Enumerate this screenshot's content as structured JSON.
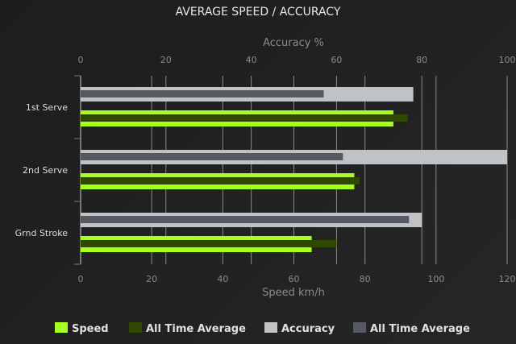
{
  "chart_data": {
    "type": "bar",
    "orientation": "horizontal",
    "title": "AVERAGE SPEED / ACCURACY",
    "categories": [
      "1st Serve",
      "2nd Serve",
      "Grnd Stroke"
    ],
    "axes": {
      "top": {
        "label": "Accuracy %",
        "range": [
          0,
          100
        ],
        "ticks": [
          "0",
          "20",
          "40",
          "60",
          "80",
          "100"
        ]
      },
      "bottom": {
        "label": "Speed km/h",
        "range": [
          0,
          120
        ],
        "ticks": [
          "0",
          "20",
          "40",
          "60",
          "80",
          "100",
          "120"
        ]
      }
    },
    "series": [
      {
        "name": "Speed",
        "axis": "bottom",
        "color": "#a6ff1e",
        "values": [
          88,
          77,
          65
        ]
      },
      {
        "name": "All Time Average",
        "axis": "bottom",
        "color": "#2f4a00",
        "values": [
          92,
          78.5,
          72
        ]
      },
      {
        "name": "Accuracy",
        "axis": "top",
        "color": "#bfc3c5",
        "values": [
          78,
          100,
          80
        ]
      },
      {
        "name": "All Time Average",
        "axis": "top",
        "color": "#555a60",
        "values": [
          57,
          61.5,
          77
        ]
      }
    ],
    "grid": true,
    "legend": "bottom"
  }
}
